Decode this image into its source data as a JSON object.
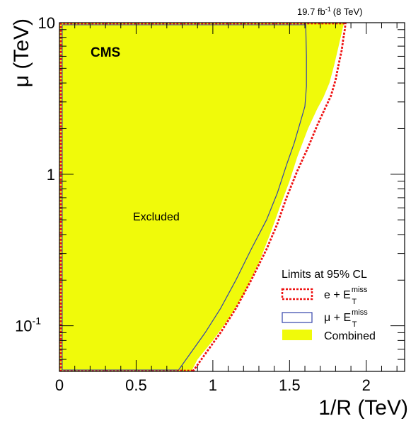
{
  "chart_data": {
    "type": "area",
    "lumi_label": "19.7 fb",
    "lumi_exponent": "-1",
    "lumi_energy": "(8 TeV)",
    "experiment_label": "CMS",
    "region_label": "Excluded",
    "xlabel": "1/R (TeV)",
    "ylabel": "μ (TeV)",
    "xlim": [
      0,
      2.25
    ],
    "ylim": [
      0.05,
      10
    ],
    "y_scale": "log",
    "x_ticks": [
      {
        "value": 0,
        "label": "0"
      },
      {
        "value": 0.5,
        "label": "0.5"
      },
      {
        "value": 1,
        "label": "1"
      },
      {
        "value": 1.5,
        "label": "1.5"
      },
      {
        "value": 2,
        "label": "2"
      }
    ],
    "y_ticks": [
      {
        "value": 0.1,
        "label": "10",
        "exp": "-1"
      },
      {
        "value": 1,
        "label": "1",
        "exp": ""
      },
      {
        "value": 10,
        "label": "10",
        "exp": ""
      }
    ],
    "legend": {
      "title": "Limits at 95% CL",
      "position": "bottom-right",
      "entries": [
        {
          "label": "e + E",
          "sub": "T",
          "sup": "miss",
          "style": "dashed-box",
          "color": "#ee1111"
        },
        {
          "label": "μ + E",
          "sub": "T",
          "sup": "miss",
          "style": "box",
          "color": "#3344aa"
        },
        {
          "label": "Combined",
          "style": "fill",
          "color": "#f0fa0a"
        }
      ]
    },
    "series": [
      {
        "name": "Combined",
        "color": "#f0fa0a",
        "x": [
          0,
          0.86,
          0.9,
          1.0,
          1.1,
          1.2,
          1.3,
          1.38,
          1.44,
          1.5,
          1.55,
          1.62,
          1.68,
          1.72,
          1.76,
          1.79,
          1.82,
          1.85,
          1.86,
          0
        ],
        "y": [
          0.05,
          0.05,
          0.06,
          0.08,
          0.11,
          0.16,
          0.26,
          0.42,
          0.62,
          0.9,
          1.3,
          2.0,
          2.7,
          3.2,
          4.0,
          5.2,
          7.0,
          9.5,
          10,
          10
        ]
      },
      {
        "name": "e + E_T^miss",
        "color": "#ee1111",
        "x": [
          0.87,
          0.95,
          1.05,
          1.15,
          1.25,
          1.35,
          1.42,
          1.48,
          1.55,
          1.62,
          1.68,
          1.73,
          1.77,
          1.8,
          1.82,
          1.84,
          1.85,
          1.86,
          1.865
        ],
        "y": [
          0.05,
          0.065,
          0.09,
          0.13,
          0.2,
          0.32,
          0.47,
          0.7,
          1.05,
          1.5,
          2.1,
          2.7,
          3.3,
          4.2,
          5.3,
          6.6,
          7.8,
          9.0,
          10
        ]
      },
      {
        "name": "μ + E_T^miss",
        "color": "#3344aa",
        "x": [
          0.77,
          0.85,
          0.95,
          1.05,
          1.15,
          1.25,
          1.35,
          1.42,
          1.48,
          1.53,
          1.57,
          1.6,
          1.61,
          1.61,
          1.605
        ],
        "y": [
          0.05,
          0.065,
          0.09,
          0.13,
          0.2,
          0.32,
          0.5,
          0.75,
          1.15,
          1.6,
          2.2,
          2.8,
          3.8,
          6.0,
          10
        ]
      }
    ]
  }
}
